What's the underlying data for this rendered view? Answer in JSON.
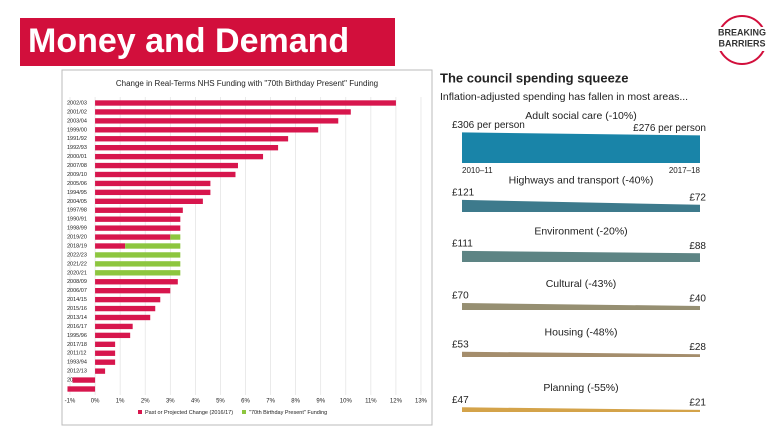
{
  "slide_title": "Money and Demand",
  "logo": [
    "BREAKING",
    "BARRIERS"
  ],
  "chart_data": [
    {
      "type": "bar",
      "orientation": "horizontal",
      "title": "Change in Real-Terms NHS Funding with \"70th Birthday Present\" Funding",
      "categories": [
        "2002/03",
        "2001/02",
        "2003/04",
        "1999/00",
        "1991/92",
        "1992/93",
        "2000/01",
        "2007/08",
        "2009/10",
        "2005/06",
        "1994/95",
        "2004/05",
        "1997/98",
        "1990/91",
        "1998/99",
        "2019/20",
        "2018/19",
        "2022/23",
        "2021/22",
        "2020/21",
        "2008/09",
        "2006/07",
        "2014/15",
        "2015/16",
        "2013/14",
        "2016/17",
        "1995/96",
        "2017/18",
        "2011/12",
        "1993/94",
        "2012/13",
        "2010/11",
        "1996/97"
      ],
      "series": [
        {
          "name": "Past or Projected Change (2016/17)",
          "color": "#d7164d",
          "values": [
            12.0,
            10.2,
            9.7,
            8.9,
            7.7,
            7.3,
            6.7,
            5.7,
            5.6,
            4.6,
            4.6,
            4.3,
            3.5,
            3.4,
            3.4,
            3.0,
            1.2,
            null,
            null,
            null,
            3.3,
            3.0,
            2.6,
            2.4,
            2.2,
            1.5,
            1.4,
            0.8,
            0.8,
            0.8,
            0.4,
            -0.9,
            -1.1
          ]
        },
        {
          "name": "\"70th Birthday Present\" Funding",
          "color": "#8dc63f",
          "values": [
            null,
            null,
            null,
            null,
            null,
            null,
            null,
            null,
            null,
            null,
            null,
            null,
            null,
            null,
            null,
            0.4,
            2.2,
            3.4,
            3.4,
            3.4,
            null,
            null,
            null,
            null,
            null,
            null,
            null,
            null,
            null,
            null,
            null,
            null,
            null
          ]
        }
      ],
      "xlim": [
        -1,
        13
      ],
      "xticks": [
        {
          "value": -1,
          "label": "-1%"
        },
        {
          "value": 0,
          "label": "0%"
        },
        {
          "value": 1,
          "label": "1%"
        },
        {
          "value": 2,
          "label": "2%"
        },
        {
          "value": 3,
          "label": "3%"
        },
        {
          "value": 4,
          "label": "4%"
        },
        {
          "value": 5,
          "label": "5%"
        },
        {
          "value": 6,
          "label": "6%"
        },
        {
          "value": 7,
          "label": "7%"
        },
        {
          "value": 8,
          "label": "8%"
        },
        {
          "value": 9,
          "label": "9%"
        },
        {
          "value": 10,
          "label": "10%"
        },
        {
          "value": 11,
          "label": "11%"
        },
        {
          "value": 12,
          "label": "12%"
        },
        {
          "value": 13,
          "label": "13%"
        }
      ],
      "grid": true,
      "legend": "bottom"
    },
    {
      "type": "slope",
      "title": "The council spending squeeze",
      "subtitle": "Inflation-adjusted spending has fallen in most areas...",
      "x": [
        "2010–11",
        "2017–18"
      ],
      "series": [
        {
          "name": "Adult social care (-10%)",
          "color": "#1984a8",
          "values": [
            306,
            276
          ],
          "value_labels": [
            "£306 per person",
            "£276 per person"
          ]
        },
        {
          "name": "Highways and transport (-40%)",
          "color": "#3d7a8c",
          "values": [
            121,
            72
          ],
          "value_labels": [
            "£121",
            "£72"
          ]
        },
        {
          "name": "Environment (-20%)",
          "color": "#5d8484",
          "values": [
            111,
            88
          ],
          "value_labels": [
            "£111",
            "£88"
          ]
        },
        {
          "name": "Cultural (-43%)",
          "color": "#968f72",
          "values": [
            70,
            40
          ],
          "value_labels": [
            "£70",
            "£40"
          ]
        },
        {
          "name": "Housing (-48%)",
          "color": "#a48d6c",
          "values": [
            53,
            28
          ],
          "value_labels": [
            "£53",
            "£28"
          ]
        },
        {
          "name": "Planning (-55%)",
          "color": "#d4a34a",
          "values": [
            47,
            21
          ],
          "value_labels": [
            "£47",
            "£21"
          ]
        }
      ]
    }
  ]
}
